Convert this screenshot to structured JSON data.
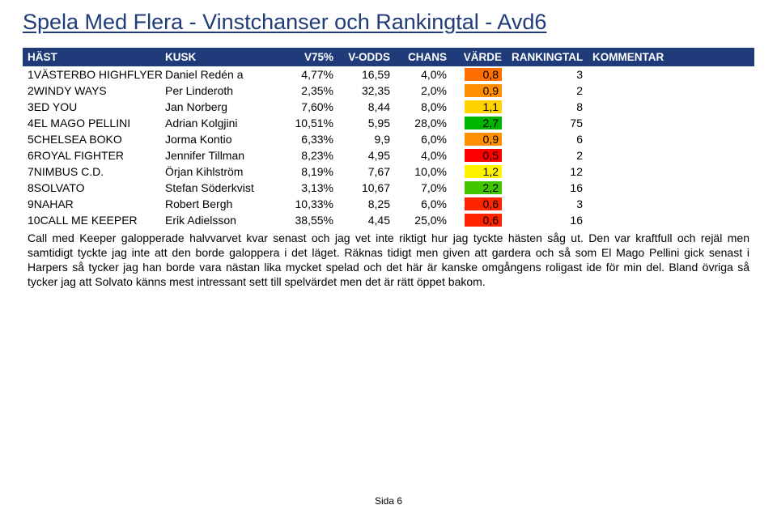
{
  "title": "Spela Med Flera - Vinstchanser och Rankingtal - Avd6",
  "footer": "Sida 6",
  "headers": {
    "hast": "HÄST",
    "kusk": "KUSK",
    "v75": "V75%",
    "vodds": "V-ODDS",
    "chans": "CHANS",
    "varde": "VÄRDE",
    "rank": "RANKINGTAL",
    "komm": "KOMMENTAR"
  },
  "varde_color_scale": {
    "min": 0.5,
    "max": 2.7,
    "low_color": "#ff0000",
    "high_color": "#00b400"
  },
  "rows": [
    {
      "n": "1",
      "hast": "VÄSTERBO HIGHFLYER",
      "kusk": "Daniel Redén a",
      "v75": "4,77%",
      "vodds": "16,59",
      "chans": "4,0%",
      "varde": "0,8",
      "varde_bg": "#ff6e00",
      "rank": "3"
    },
    {
      "n": "2",
      "hast": "WINDY WAYS",
      "kusk": "Per Linderoth",
      "v75": "2,35%",
      "vodds": "32,35",
      "chans": "2,0%",
      "varde": "0,9",
      "varde_bg": "#ff8f00",
      "rank": "2"
    },
    {
      "n": "3",
      "hast": "ED YOU",
      "kusk": "Jan Norberg",
      "v75": "7,60%",
      "vodds": "8,44",
      "chans": "8,0%",
      "varde": "1,1",
      "varde_bg": "#ffd200",
      "rank": "8"
    },
    {
      "n": "4",
      "hast": "EL MAGO PELLINI",
      "kusk": "Adrian Kolgjini",
      "v75": "10,51%",
      "vodds": "5,95",
      "chans": "28,0%",
      "varde": "2,7",
      "varde_bg": "#00b400",
      "rank": "75"
    },
    {
      "n": "5",
      "hast": "CHELSEA BOKO",
      "kusk": "Jorma Kontio",
      "v75": "6,33%",
      "vodds": "9,9",
      "chans": "6,0%",
      "varde": "0,9",
      "varde_bg": "#ff8f00",
      "rank": "6"
    },
    {
      "n": "6",
      "hast": "ROYAL FIGHTER",
      "kusk": "Jennifer Tillman",
      "v75": "8,23%",
      "vodds": "4,95",
      "chans": "4,0%",
      "varde": "0,5",
      "varde_bg": "#ff0000",
      "rank": "2"
    },
    {
      "n": "7",
      "hast": "NIMBUS C.D.",
      "kusk": "Örjan Kihlström",
      "v75": "8,19%",
      "vodds": "7,67",
      "chans": "10,0%",
      "varde": "1,2",
      "varde_bg": "#fff300",
      "rank": "12"
    },
    {
      "n": "8",
      "hast": "SOLVATO",
      "kusk": "Stefan Söderkvist",
      "v75": "3,13%",
      "vodds": "10,67",
      "chans": "7,0%",
      "varde": "2,2",
      "varde_bg": "#3fc600",
      "rank": "16"
    },
    {
      "n": "9",
      "hast": "NAHAR",
      "kusk": "Robert Bergh",
      "v75": "10,33%",
      "vodds": "8,25",
      "chans": "6,0%",
      "varde": "0,6",
      "varde_bg": "#ff2400",
      "rank": "3"
    },
    {
      "n": "10",
      "hast": "CALL ME KEEPER",
      "kusk": "Erik Adielsson",
      "v75": "38,55%",
      "vodds": "4,45",
      "chans": "25,0%",
      "varde": "0,6",
      "varde_bg": "#ff2400",
      "rank": "16"
    }
  ],
  "comment": "Call med Keeper galopperade halvvarvet kvar senast och jag vet inte riktigt hur jag tyckte hästen såg ut. Den var kraftfull och rejäl men samtidigt tyckte jag inte att den borde galoppera i det läget. Räknas tidigt men given att gardera och så som El Mago Pellini gick senast i Harpers så tycker jag han borde vara nästan lika mycket spelad och det här är kanske omgångens roligast ide för min del. Bland övriga så tycker jag att Solvato känns mest intressant sett till spelvärdet men det är rätt öppet bakom."
}
